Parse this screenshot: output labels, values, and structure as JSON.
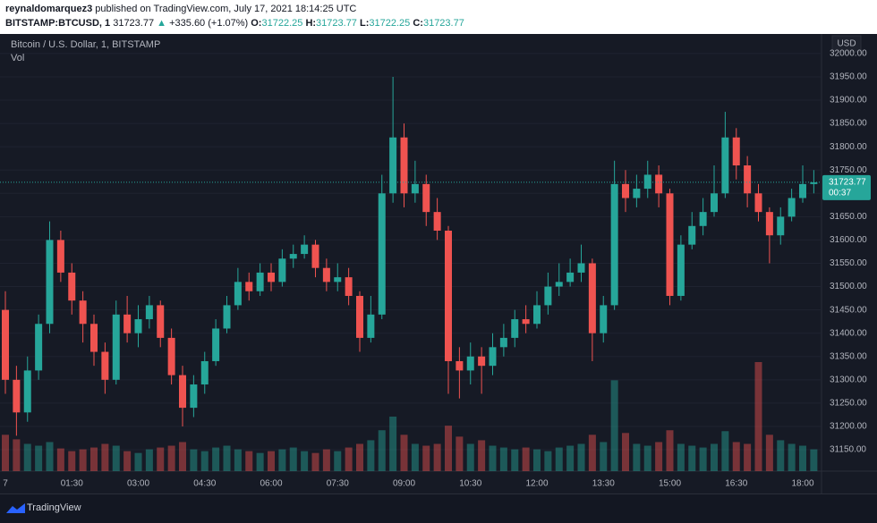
{
  "header": {
    "author": "reynaldomarquez3",
    "published": "published on TradingView.com, July 17, 2021 18:14:25 UTC",
    "symbol": "BITSTAMP:BTCUSD, 1",
    "last": 31723.77,
    "arrow": "▲",
    "change": "+335.60 (+1.07%)",
    "o_label": "O:",
    "o": 31722.25,
    "h_label": "H:",
    "h": 31723.77,
    "l_label": "L:",
    "l": 31722.25,
    "c_label": "C:",
    "c": 31723.77
  },
  "footer": {
    "brand": "TradingView"
  },
  "chart_data": {
    "type": "candlestick",
    "legend": "Bitcoin / U.S. Dollar, 1, BITSTAMP",
    "volume_label": "Vol",
    "y_axis_label": "USD",
    "up_color": "#26a69a",
    "down_color": "#ef5350",
    "last_price": 31723.77,
    "countdown": "00:37",
    "categories": [
      "7",
      null,
      null,
      null,
      null,
      null,
      "01:30",
      null,
      null,
      null,
      null,
      null,
      "03:00",
      null,
      null,
      null,
      null,
      null,
      "04:30",
      null,
      null,
      null,
      null,
      null,
      "06:00",
      null,
      null,
      null,
      null,
      null,
      "07:30",
      null,
      null,
      null,
      null,
      null,
      "09:00",
      null,
      null,
      null,
      null,
      null,
      "10:30",
      null,
      null,
      null,
      null,
      null,
      "12:00",
      null,
      null,
      null,
      null,
      null,
      "13:30",
      null,
      null,
      null,
      null,
      null,
      "15:00",
      null,
      null,
      null,
      null,
      null,
      "16:30",
      null,
      null,
      null,
      null,
      null,
      "18:00",
      null
    ],
    "open": [
      31450,
      31300,
      31230,
      31320,
      31420,
      31600,
      31530,
      31470,
      31420,
      31360,
      31300,
      31440,
      31400,
      31430,
      31460,
      31390,
      31310,
      31240,
      31290,
      31340,
      31410,
      31460,
      31510,
      31490,
      31530,
      31510,
      31560,
      31570,
      31590,
      31540,
      31510,
      31520,
      31480,
      31390,
      31440,
      31700,
      31820,
      31700,
      31720,
      31660,
      31620,
      31340,
      31320,
      31350,
      31330,
      31370,
      31390,
      31430,
      31420,
      31460,
      31500,
      31510,
      31530,
      31550,
      31400,
      31460,
      31720,
      31690,
      31710,
      31740,
      31700,
      31480,
      31590,
      31630,
      31660,
      31700,
      31820,
      31760,
      31700,
      31660,
      31610,
      31650,
      31690,
      31720
    ],
    "high": [
      31490,
      31330,
      31350,
      31440,
      31640,
      31620,
      31550,
      31490,
      31440,
      31380,
      31470,
      31480,
      31460,
      31480,
      31470,
      31410,
      31330,
      31310,
      31360,
      31430,
      31480,
      31540,
      31530,
      31550,
      31550,
      31580,
      31590,
      31610,
      31600,
      31560,
      31550,
      31540,
      31490,
      31480,
      31740,
      31950,
      31850,
      31770,
      31740,
      31690,
      31630,
      31370,
      31380,
      31370,
      31400,
      31420,
      31450,
      31460,
      31490,
      31530,
      31550,
      31560,
      31590,
      31560,
      31480,
      31770,
      31750,
      31740,
      31770,
      31760,
      31710,
      31610,
      31660,
      31690,
      31760,
      31875,
      31840,
      31780,
      31720,
      31670,
      31670,
      31710,
      31760,
      31750
    ],
    "low": [
      31270,
      31180,
      31210,
      31300,
      31400,
      31510,
      31440,
      31380,
      31330,
      31270,
      31290,
      31380,
      31370,
      31410,
      31370,
      31290,
      31200,
      31220,
      31270,
      31330,
      31400,
      31450,
      31470,
      31480,
      31490,
      31500,
      31540,
      31560,
      31520,
      31490,
      31490,
      31460,
      31360,
      31380,
      31430,
      31680,
      31670,
      31680,
      31630,
      31600,
      31270,
      31260,
      31290,
      31270,
      31310,
      31350,
      31370,
      31400,
      31410,
      31440,
      31480,
      31500,
      31510,
      31340,
      31380,
      31450,
      31660,
      31670,
      31690,
      31670,
      31460,
      31470,
      31580,
      31610,
      31650,
      31690,
      31730,
      31670,
      31640,
      31550,
      31590,
      31640,
      31680,
      31700
    ],
    "close": [
      31300,
      31230,
      31320,
      31420,
      31600,
      31530,
      31470,
      31420,
      31360,
      31300,
      31440,
      31400,
      31430,
      31460,
      31390,
      31310,
      31240,
      31290,
      31340,
      31410,
      31460,
      31510,
      31490,
      31530,
      31510,
      31560,
      31570,
      31590,
      31540,
      31510,
      31520,
      31480,
      31390,
      31440,
      31700,
      31820,
      31700,
      31720,
      31660,
      31620,
      31340,
      31320,
      31350,
      31330,
      31370,
      31390,
      31430,
      31420,
      31460,
      31500,
      31510,
      31530,
      31550,
      31400,
      31460,
      31720,
      31690,
      31710,
      31740,
      31700,
      31480,
      31590,
      31630,
      31660,
      31700,
      31820,
      31760,
      31700,
      31660,
      31610,
      31650,
      31690,
      31720,
      31723.77
    ],
    "volume": [
      40,
      35,
      30,
      28,
      32,
      25,
      22,
      24,
      26,
      30,
      28,
      22,
      20,
      24,
      26,
      28,
      32,
      24,
      22,
      26,
      28,
      24,
      22,
      20,
      22,
      24,
      26,
      22,
      20,
      24,
      22,
      26,
      30,
      34,
      45,
      60,
      40,
      30,
      28,
      30,
      50,
      38,
      30,
      34,
      28,
      26,
      24,
      26,
      24,
      22,
      26,
      28,
      30,
      40,
      32,
      100,
      42,
      30,
      28,
      32,
      45,
      30,
      28,
      26,
      30,
      44,
      32,
      30,
      120,
      40,
      34,
      30,
      28,
      24
    ],
    "ylim": [
      31104,
      32042
    ],
    "yticks": [
      {
        "value": 31150,
        "label": "31150.00"
      },
      {
        "value": 31200,
        "label": "31200.00"
      },
      {
        "value": 31250,
        "label": "31250.00"
      },
      {
        "value": 31300,
        "label": "31300.00"
      },
      {
        "value": 31350,
        "label": "31350.00"
      },
      {
        "value": 31400,
        "label": "31400.00"
      },
      {
        "value": 31450,
        "label": "31450.00"
      },
      {
        "value": 31500,
        "label": "31500.00"
      },
      {
        "value": 31550,
        "label": "31550.00"
      },
      {
        "value": 31600,
        "label": "31600.00"
      },
      {
        "value": 31650,
        "label": "31650.00"
      },
      {
        "value": 31700,
        "label": "31700.00"
      },
      {
        "value": 31750,
        "label": "31750.00"
      },
      {
        "value": 31800,
        "label": "31800.00"
      },
      {
        "value": 31850,
        "label": "31850.00"
      },
      {
        "value": 31900,
        "label": "31900.00"
      },
      {
        "value": 31950,
        "label": "31950.00"
      },
      {
        "value": 32000,
        "label": "32000.00"
      }
    ],
    "grid": true
  }
}
